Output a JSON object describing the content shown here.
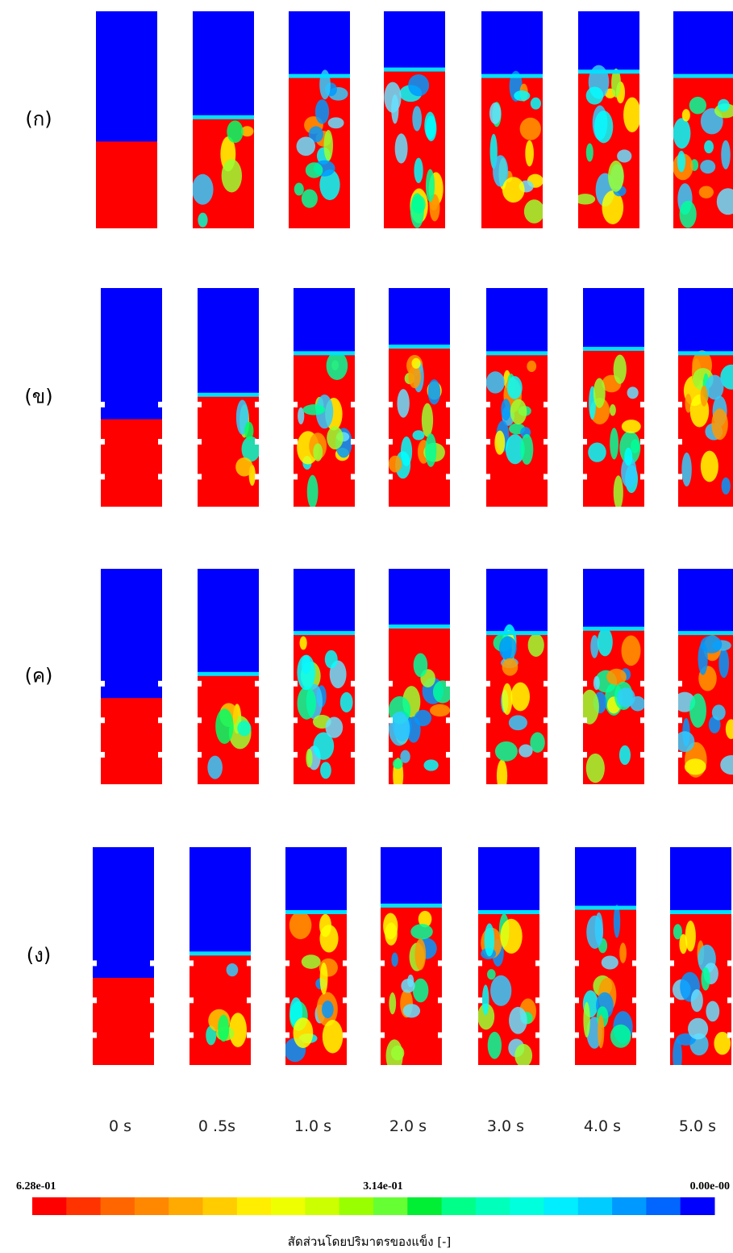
{
  "rows": [
    {
      "label": "(ก)"
    },
    {
      "label": "(ข)"
    },
    {
      "label": "(ค)"
    },
    {
      "label": "(ง)"
    }
  ],
  "times": [
    "0 s",
    "0 .5s",
    "1.0 s",
    "2.0 s",
    "3.0 s",
    "4.0 s",
    "5.0 s"
  ],
  "colorbar": {
    "max_label": "6.28e-01",
    "mid_label": "3.14e-01",
    "min_label": "0.00e-00",
    "title": "สัดส่วนโดยปริมาตรของแข็ง [-]",
    "colors": [
      "#ff0000",
      "#ff3300",
      "#ff6600",
      "#ff8800",
      "#ffaa00",
      "#ffcc00",
      "#ffee00",
      "#eeff00",
      "#ccff00",
      "#99ff00",
      "#66ff33",
      "#00ee33",
      "#00ff88",
      "#00ffbb",
      "#00ffdd",
      "#00eeff",
      "#00ccff",
      "#0099ff",
      "#0066ff",
      "#0000ff"
    ]
  }
}
